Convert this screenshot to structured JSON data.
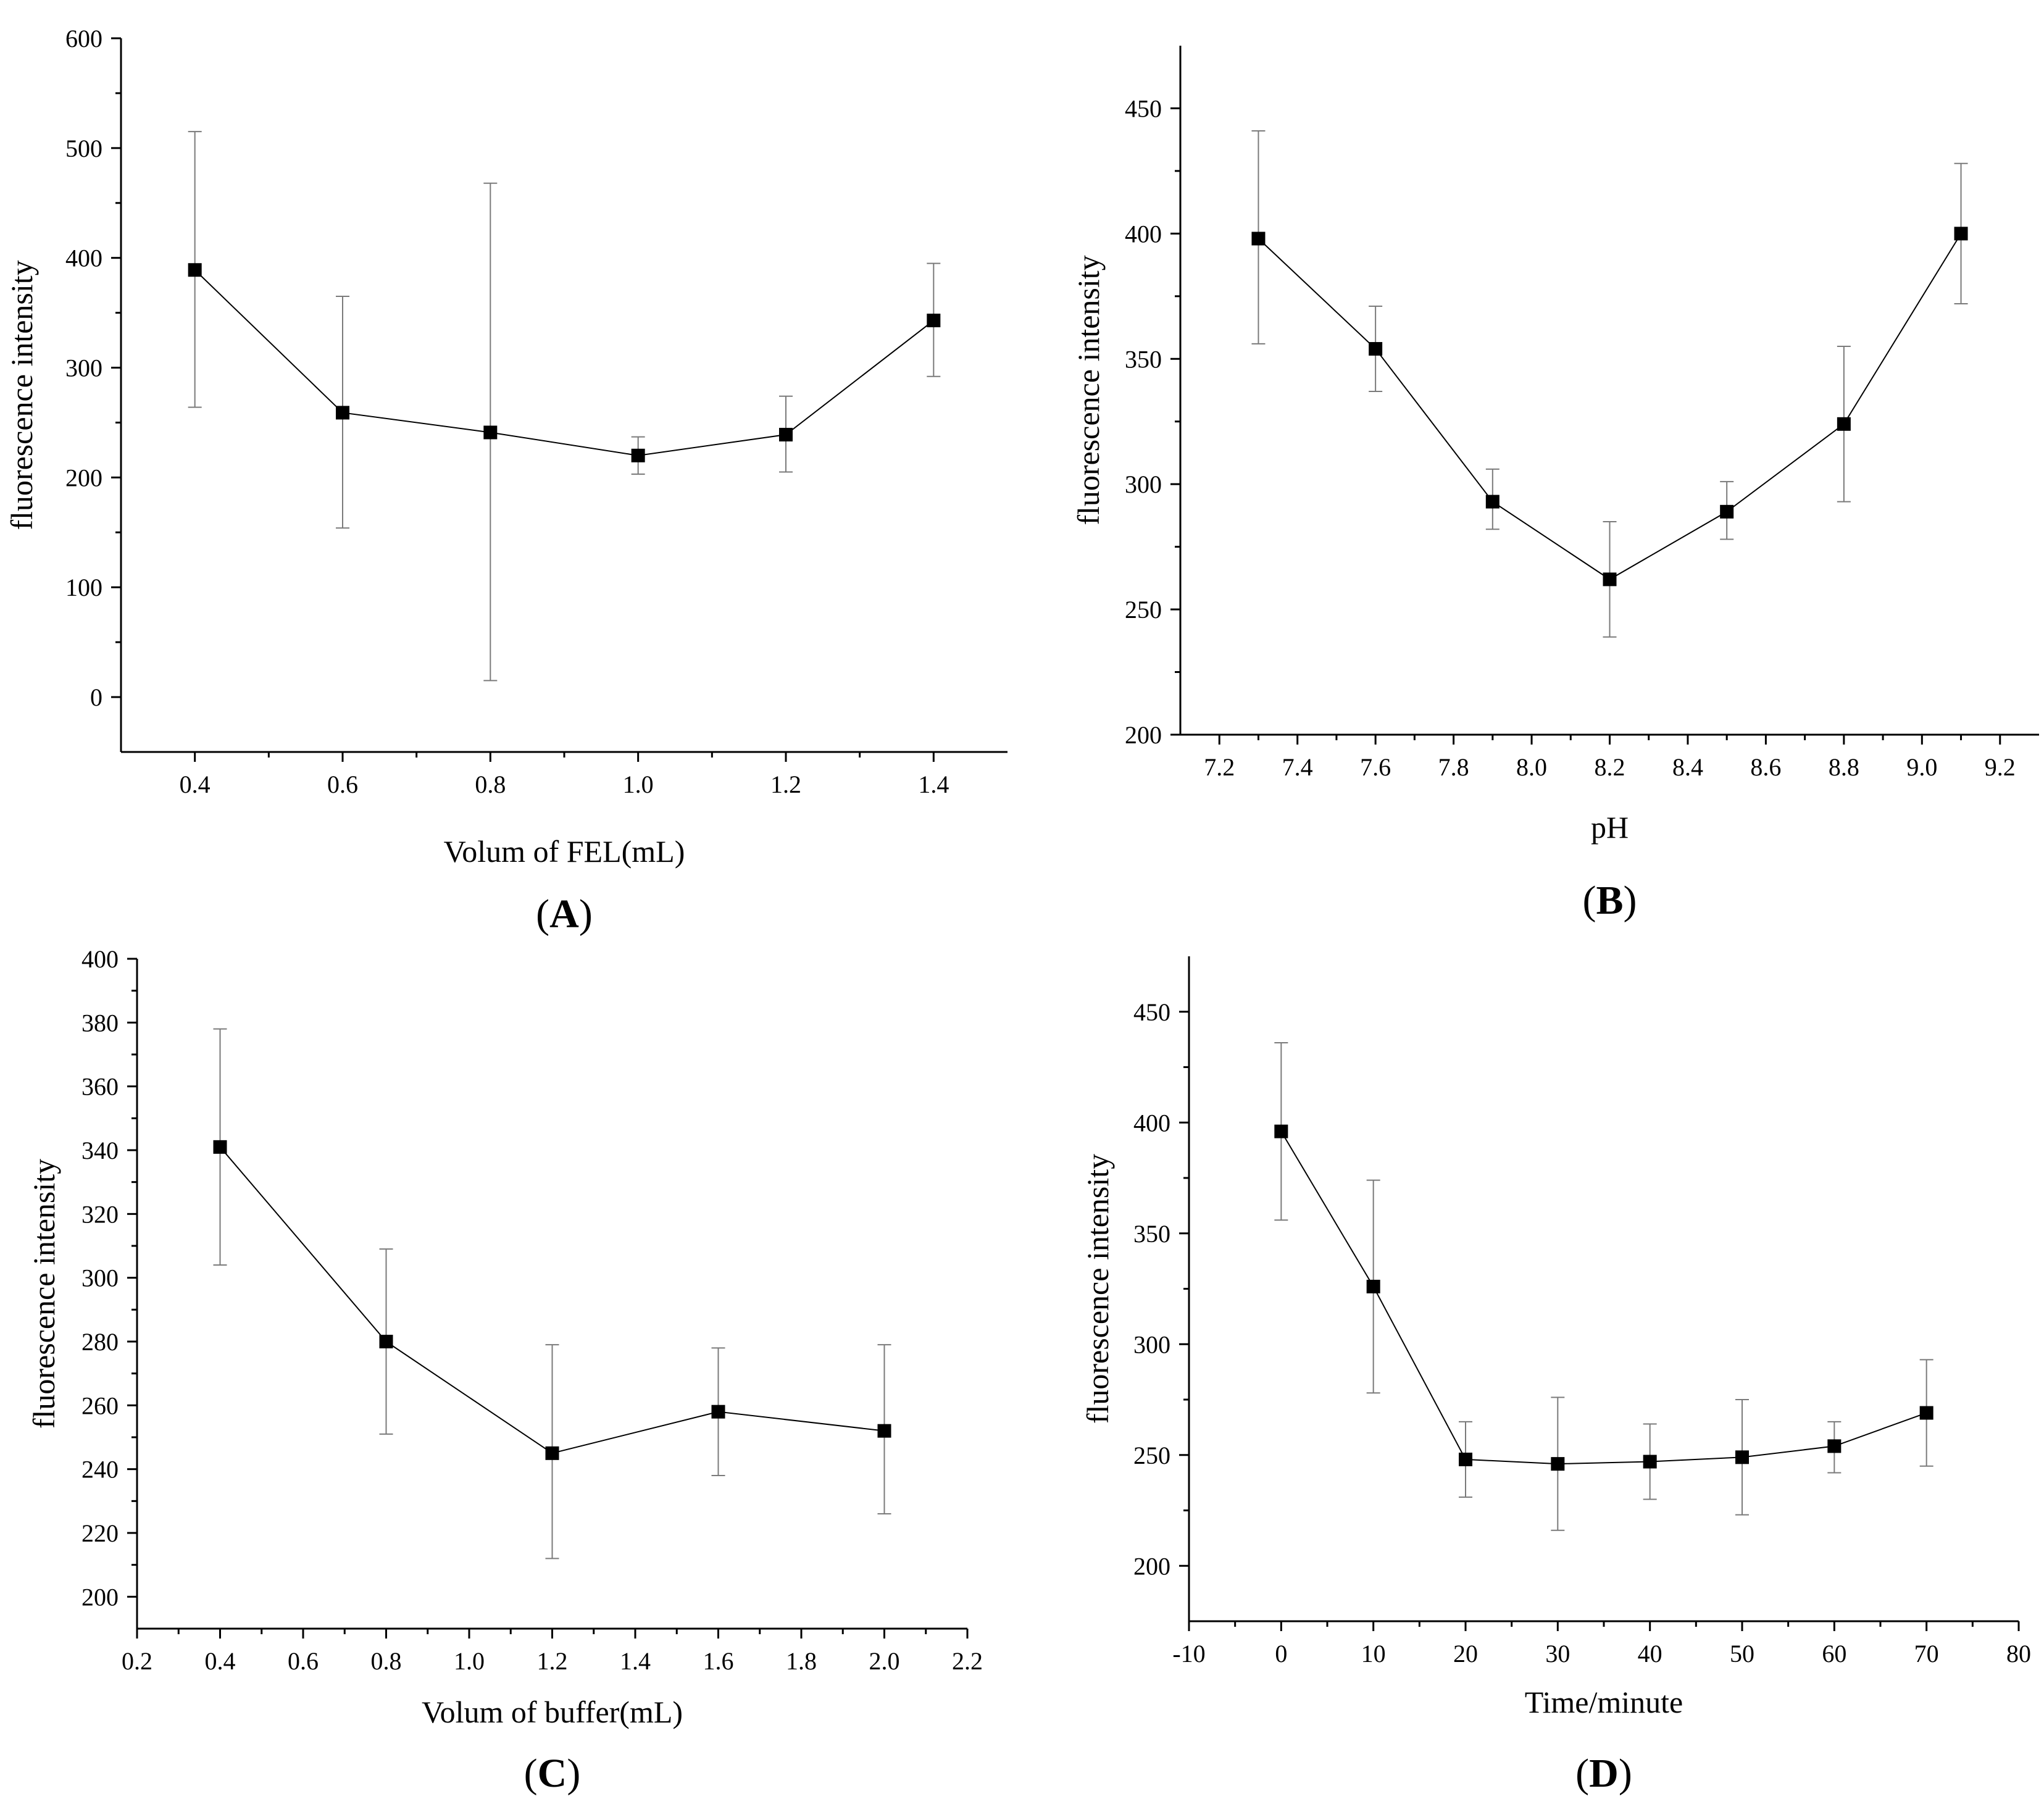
{
  "figure": {
    "colors": {
      "line": "#000000",
      "marker": "#000000",
      "errorbar": "#7a7a7a",
      "axis": "#000000"
    }
  },
  "chart_data": [
    {
      "id": "A",
      "type": "line",
      "panel_label": "A",
      "xlabel": "Volum of FEL(mL)",
      "ylabel": "fluorescence intensity",
      "x": [
        0.4,
        0.6,
        0.8,
        1.0,
        1.2,
        1.4
      ],
      "values": [
        389,
        259,
        241,
        220,
        239,
        343
      ],
      "err_low": [
        264,
        154,
        15,
        203,
        205,
        292
      ],
      "err_high": [
        515,
        365,
        468,
        237,
        274,
        395
      ],
      "xlim": [
        0.3,
        1.5
      ],
      "ylim": [
        -50,
        600
      ],
      "xticks": [
        0.4,
        0.6,
        0.8,
        1.0,
        1.2,
        1.4
      ],
      "xtick_labels": [
        "0.4",
        "0.6",
        "0.8",
        "1.0",
        "1.2",
        "1.4"
      ],
      "yticks": [
        0,
        100,
        200,
        300,
        400,
        500,
        600
      ],
      "ytick_labels": [
        "0",
        "100",
        "200",
        "300",
        "400",
        "500",
        "600"
      ],
      "grid": false,
      "legend": "none"
    },
    {
      "id": "B",
      "type": "line",
      "panel_label": "B",
      "xlabel": "pH",
      "ylabel": "fluorescence intensity",
      "x": [
        7.3,
        7.6,
        7.9,
        8.2,
        8.5,
        8.8,
        9.1
      ],
      "values": [
        398,
        354,
        293,
        262,
        289,
        324,
        400
      ],
      "err_low": [
        356,
        337,
        282,
        239,
        278,
        293,
        372
      ],
      "err_high": [
        441,
        371,
        306,
        285,
        301,
        355,
        428
      ],
      "xlim": [
        7.1,
        9.3
      ],
      "ylim": [
        200,
        475
      ],
      "xticks": [
        7.2,
        7.4,
        7.6,
        7.8,
        8.0,
        8.2,
        8.4,
        8.6,
        8.8,
        9.0,
        9.2
      ],
      "xtick_labels": [
        "7.2",
        "7.4",
        "7.6",
        "7.8",
        "8.0",
        "8.2",
        "8.4",
        "8.6",
        "8.8",
        "9.0",
        "9.2"
      ],
      "yticks": [
        200,
        250,
        300,
        350,
        400,
        450
      ],
      "ytick_labels": [
        "200",
        "250",
        "300",
        "350",
        "400",
        "450"
      ],
      "grid": false,
      "legend": "none"
    },
    {
      "id": "C",
      "type": "line",
      "panel_label": "C",
      "xlabel": "Volum of buffer(mL)",
      "ylabel": "fluorescence intensity",
      "x": [
        0.4,
        0.8,
        1.2,
        1.6,
        2.0
      ],
      "values": [
        341,
        280,
        245,
        258,
        252
      ],
      "err_low": [
        304,
        251,
        212,
        238,
        226
      ],
      "err_high": [
        378,
        309,
        279,
        278,
        279
      ],
      "xlim": [
        0.2,
        2.2
      ],
      "ylim": [
        190,
        400
      ],
      "xticks": [
        0.2,
        0.4,
        0.6,
        0.8,
        1.0,
        1.2,
        1.4,
        1.6,
        1.8,
        2.0,
        2.2
      ],
      "xtick_labels": [
        "0.2",
        "0.4",
        "0.6",
        "0.8",
        "1.0",
        "1.2",
        "1.4",
        "1.6",
        "1.8",
        "2.0",
        "2.2"
      ],
      "yticks": [
        200,
        220,
        240,
        260,
        280,
        300,
        320,
        340,
        360,
        380,
        400
      ],
      "ytick_labels": [
        "200",
        "220",
        "240",
        "260",
        "280",
        "300",
        "320",
        "340",
        "360",
        "380",
        "400"
      ],
      "grid": false,
      "legend": "none"
    },
    {
      "id": "D",
      "type": "line",
      "panel_label": "D",
      "xlabel": "Time/minute",
      "ylabel": "fluorescence intensity",
      "x": [
        0,
        10,
        20,
        30,
        40,
        50,
        60,
        70
      ],
      "values": [
        396,
        326,
        248,
        246,
        247,
        249,
        254,
        269
      ],
      "err_low": [
        356,
        278,
        231,
        216,
        230,
        223,
        242,
        245
      ],
      "err_high": [
        436,
        374,
        265,
        276,
        264,
        275,
        265,
        293
      ],
      "xlim": [
        -10,
        80
      ],
      "ylim": [
        175,
        475
      ],
      "xticks": [
        -10,
        0,
        10,
        20,
        30,
        40,
        50,
        60,
        70,
        80
      ],
      "xtick_labels": [
        "-10",
        "0",
        "10",
        "20",
        "30",
        "40",
        "50",
        "60",
        "70",
        "80"
      ],
      "yticks": [
        200,
        250,
        300,
        350,
        400,
        450
      ],
      "ytick_labels": [
        "200",
        "250",
        "300",
        "350",
        "400",
        "450"
      ],
      "grid": false,
      "legend": "none"
    }
  ]
}
